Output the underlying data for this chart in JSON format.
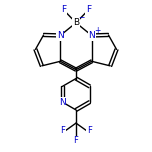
{
  "bg_color": "#ffffff",
  "bond_color": "#000000",
  "atom_colors": {
    "N": "#0000cc",
    "B": "#000000",
    "F": "#0000cc",
    "C": "#000000"
  },
  "charge_color": "#0000cc",
  "line_width": 1.0,
  "figsize": [
    1.52,
    1.52
  ],
  "dpi": 100,
  "xlim": [
    -2.2,
    2.2
  ],
  "ylim": [
    -3.8,
    2.2
  ]
}
